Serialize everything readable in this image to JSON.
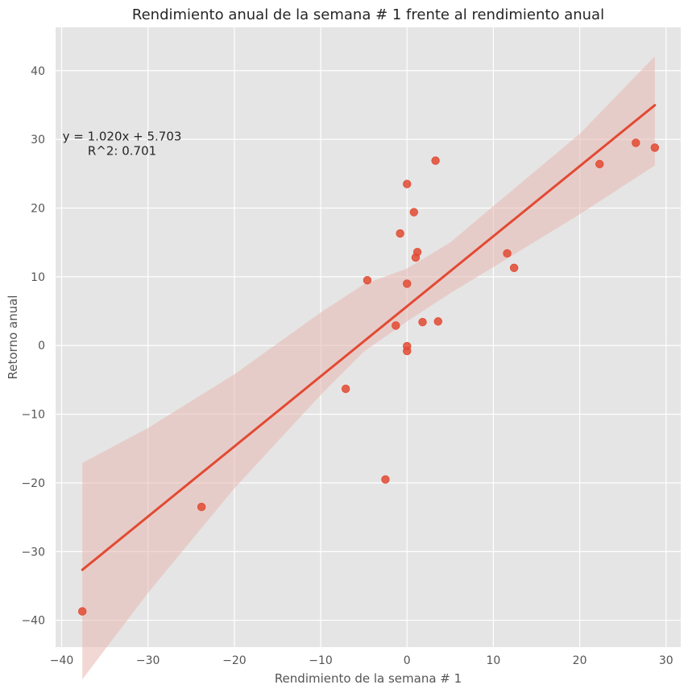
{
  "chart_data": {
    "type": "scatter",
    "title": "Rendimiento anual de la semana # 1 frente al rendimiento anual",
    "xlabel": "Rendimiento de la semana # 1",
    "ylabel": "Retorno anual",
    "xlim": [
      -40.7,
      31.7
    ],
    "ylim": [
      -43.9,
      46.3
    ],
    "xticks": [
      -40,
      -30,
      -20,
      -10,
      0,
      10,
      20,
      30
    ],
    "yticks": [
      -40,
      -30,
      -20,
      -10,
      0,
      10,
      20,
      30,
      40
    ],
    "xtick_labels": [
      "−40",
      "−30",
      "−20",
      "−10",
      "0",
      "10",
      "20",
      "30"
    ],
    "ytick_labels": [
      "−40",
      "−30",
      "−20",
      "−10",
      "0",
      "10",
      "20",
      "30",
      "40"
    ],
    "grid": true,
    "background": "#e5e5e5",
    "grid_color": "#ffffff",
    "point_color": "#e24a33",
    "line_color": "#e24a33",
    "band_color": "#e8b8b0",
    "points": [
      {
        "x": -37.6,
        "y": -38.7
      },
      {
        "x": -23.8,
        "y": -23.5
      },
      {
        "x": -7.1,
        "y": -6.3
      },
      {
        "x": -4.6,
        "y": 9.5
      },
      {
        "x": -2.5,
        "y": -19.5
      },
      {
        "x": -1.3,
        "y": 2.9
      },
      {
        "x": -0.8,
        "y": 16.3
      },
      {
        "x": 0.0,
        "y": 23.5
      },
      {
        "x": 0.0,
        "y": 9.0
      },
      {
        "x": 0.0,
        "y": -0.1
      },
      {
        "x": 0.0,
        "y": -0.8
      },
      {
        "x": 0.8,
        "y": 19.4
      },
      {
        "x": 1.0,
        "y": 12.8
      },
      {
        "x": 1.2,
        "y": 13.6
      },
      {
        "x": 1.8,
        "y": 3.4
      },
      {
        "x": 3.3,
        "y": 26.9
      },
      {
        "x": 3.6,
        "y": 3.5
      },
      {
        "x": 11.6,
        "y": 13.4
      },
      {
        "x": 12.4,
        "y": 11.3
      },
      {
        "x": 22.3,
        "y": 26.4
      },
      {
        "x": 26.5,
        "y": 29.5
      },
      {
        "x": 28.7,
        "y": 28.8
      }
    ],
    "regression": {
      "slope": 1.02,
      "intercept": 5.703,
      "x_range": [
        -37.6,
        28.7
      ]
    },
    "confidence_band": [
      {
        "x": -37.6,
        "lower": -48.6,
        "upper": -17.1
      },
      {
        "x": -30.0,
        "lower": -36.0,
        "upper": -12.0
      },
      {
        "x": -20.0,
        "lower": -20.8,
        "upper": -4.2
      },
      {
        "x": -10.0,
        "lower": -7.2,
        "upper": 4.8
      },
      {
        "x": -5.0,
        "lower": -0.9,
        "upper": 8.9
      },
      {
        "x": 0.0,
        "lower": 3.5,
        "upper": 11.2
      },
      {
        "x": 5.0,
        "lower": 7.6,
        "upper": 15.0
      },
      {
        "x": 10.0,
        "lower": 11.4,
        "upper": 20.3
      },
      {
        "x": 20.0,
        "lower": 19.1,
        "upper": 30.8
      },
      {
        "x": 28.7,
        "lower": 26.2,
        "upper": 42.1
      }
    ],
    "annotation": {
      "line1": "y = 1.020x + 5.703",
      "line2": "R^2: 0.701",
      "x": -33.0,
      "y": 29.5
    }
  }
}
